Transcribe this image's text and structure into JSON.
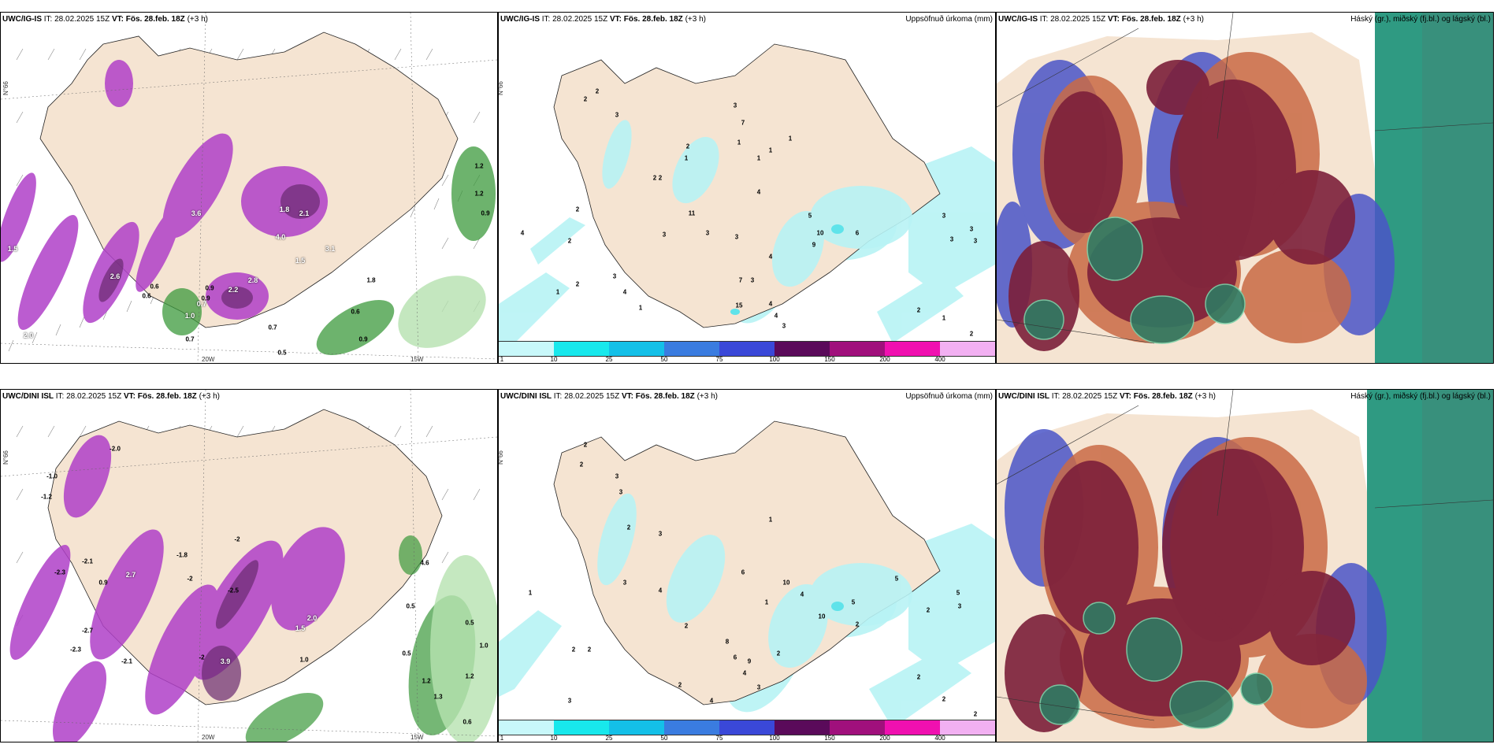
{
  "colors": {
    "land": "#f5e4d2",
    "sea": "#ffffff",
    "precip_light": "#b8f3f5",
    "precip_mid": "#5fe3ea",
    "purple": "#b040c8",
    "purple_dark": "#6a2a70",
    "green": "#3c9a3c",
    "green_light": "#b6e2b0",
    "cloud_high": "#7c1f3a",
    "cloud_mid": "#c96a45",
    "cloud_low": "#2f8a6a",
    "cloud_blue": "#4a55c8"
  },
  "panels": {
    "top_left": {
      "model": "UWC/IG-IS",
      "it_label": "IT: 28.02.2025 15Z",
      "vt_label": "VT: Fös. 28.feb. 18Z",
      "offset": "(+3 h)",
      "lat_label": "N°66",
      "lon_labels": [
        "20W",
        "15W"
      ],
      "values": [
        "1.2",
        "1.2",
        "0.9",
        "0.9",
        "1.8",
        "0.6",
        "0.6",
        "0.7",
        "0.5",
        "0.7",
        "0.9",
        "0.6",
        "0.9",
        "1.5",
        "2.0",
        "2.6",
        "3.1",
        "2.1",
        "2.2",
        "2.8",
        "0.7",
        "1.0",
        "4.0",
        "3.6",
        "1.5",
        "1.8"
      ]
    },
    "top_mid": {
      "model": "UWC/IG-IS",
      "it_label": "IT: 28.02.2025 15Z",
      "vt_label": "VT: Fös. 28.feb. 18Z",
      "offset": "(+3 h)",
      "field_title": "Uppsöfnuð úrkoma (mm)",
      "lat_label": "N°66",
      "values": [
        "2",
        "3",
        "1",
        "3",
        "2",
        "7",
        "1",
        "2",
        "11",
        "3",
        "4",
        "5",
        "10",
        "6",
        "3",
        "9",
        "4",
        "3",
        "2",
        "1",
        "1",
        "2",
        "3",
        "4",
        "2",
        "4",
        "1",
        "1",
        "2",
        "7",
        "3",
        "15",
        "4",
        "4",
        "3",
        "1",
        "2",
        "3",
        "3",
        "3",
        "3",
        "2",
        "1",
        "2"
      ]
    },
    "top_right": {
      "model": "UWC/IG-IS",
      "it_label": "IT: 28.02.2025 15Z",
      "vt_label": "VT: Fös. 28.feb. 18Z",
      "offset": "(+3 h)",
      "field_title": "Háský (gr.), miðský (fj.bl.) og lágský (bl.)"
    },
    "bottom_left": {
      "model": "UWC/DINI ISL",
      "it_label": "IT: 28.02.2025 15Z",
      "vt_label": "VT: Fös. 28.feb. 18Z",
      "offset": "(+3 h)",
      "lat_label": "N°66",
      "lon_labels": [
        "20W",
        "15W"
      ],
      "values": [
        "-2.0",
        "-1.0",
        "-1.2",
        "-2.1",
        "-2.3",
        "-2.7",
        "-2.3",
        "-2.1",
        "-1.8",
        "-2",
        "-2.5",
        "-2",
        "-2",
        "0.9",
        "1.0",
        "0.5",
        "0.5",
        "1.0",
        "1.2",
        "1.2",
        "0.5",
        "0.6",
        "1.3",
        "4.6",
        "2.7",
        "3.9",
        "2.0",
        "1.5"
      ]
    },
    "bottom_mid": {
      "model": "UWC/DINI ISL",
      "it_label": "IT: 28.02.2025 15Z",
      "vt_label": "VT: Fös. 28.feb. 18Z",
      "offset": "(+3 h)",
      "field_title": "Uppsöfnuð úrkoma (mm)",
      "lat_label": "N°66",
      "values": [
        "2",
        "2",
        "3",
        "3",
        "1",
        "2",
        "3",
        "4",
        "2",
        "1",
        "6",
        "10",
        "4",
        "8",
        "10",
        "5",
        "2",
        "6",
        "9",
        "4",
        "3",
        "2",
        "1",
        "2",
        "3",
        "2",
        "3",
        "2",
        "4",
        "2",
        "2",
        "2",
        "2",
        "5",
        "5",
        "3"
      ]
    },
    "bottom_right": {
      "model": "UWC/DINI ISL",
      "it_label": "IT: 28.02.2025 15Z",
      "vt_label": "VT: Fös. 28.feb. 18Z",
      "offset": "(+3 h)",
      "field_title": "Háský (gr.), miðský (fj.bl.) og lágský (bl.)"
    }
  },
  "colorbar": {
    "ticks": [
      "1",
      "10",
      "25",
      "50",
      "75",
      "100",
      "150",
      "200",
      "400"
    ],
    "colors": [
      "#c8f8fa",
      "#18e8ec",
      "#14c0e8",
      "#3a7ce0",
      "#3a48d8",
      "#5a0a5a",
      "#a0107c",
      "#f010b0",
      "#f2b0f2"
    ]
  }
}
